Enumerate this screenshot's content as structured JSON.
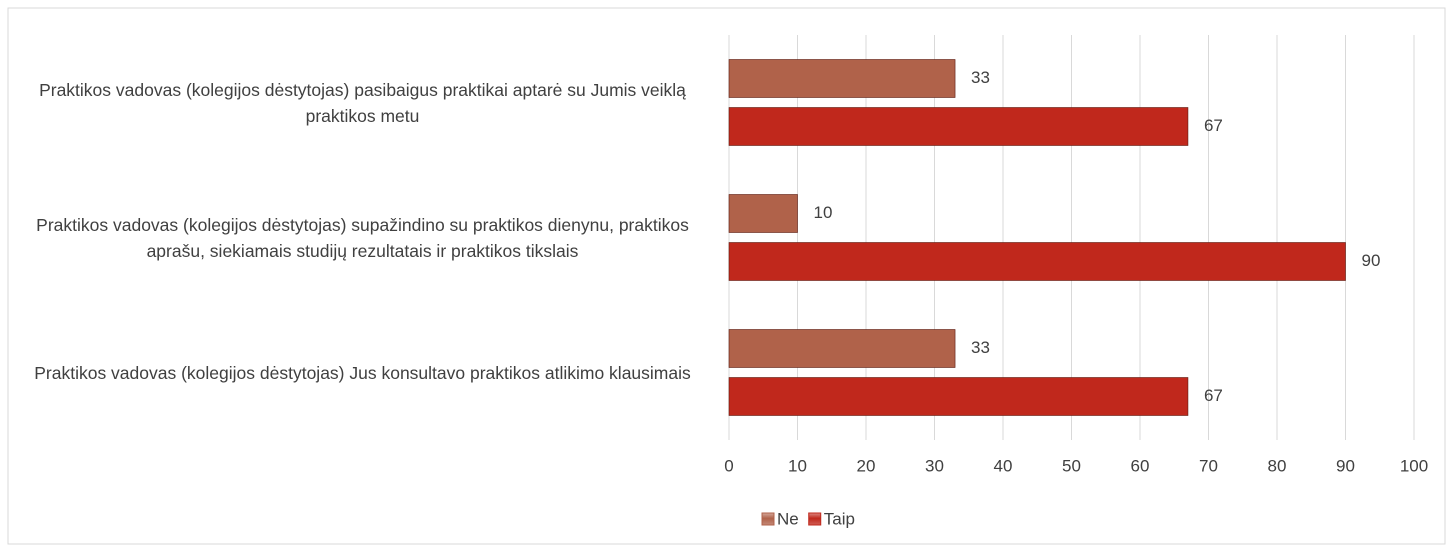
{
  "chart_data": {
    "type": "bar",
    "orientation": "horizontal",
    "categories": [
      "Praktikos vadovas (kolegijos dėstytojas) pasibaigus praktikai aptarė su Jumis veiklą praktikos metu",
      "Praktikos vadovas (kolegijos dėstytojas) supažindino su praktikos dienynu, praktikos aprašu,  siekiamais studijų rezultatais ir praktikos tikslais",
      "Praktikos vadovas (kolegijos dėstytojas) Jus konsultavo praktikos atlikimo klausimais"
    ],
    "series": [
      {
        "name": "Ne",
        "color": "#b0624a",
        "values": [
          33,
          10,
          33
        ]
      },
      {
        "name": "Taip",
        "color": "#c0281c",
        "values": [
          67,
          90,
          67
        ]
      }
    ],
    "xlim": [
      0,
      100
    ],
    "xticks": [
      0,
      10,
      20,
      30,
      40,
      50,
      60,
      70,
      80,
      90,
      100
    ],
    "grid": true,
    "legend": "bottom"
  }
}
